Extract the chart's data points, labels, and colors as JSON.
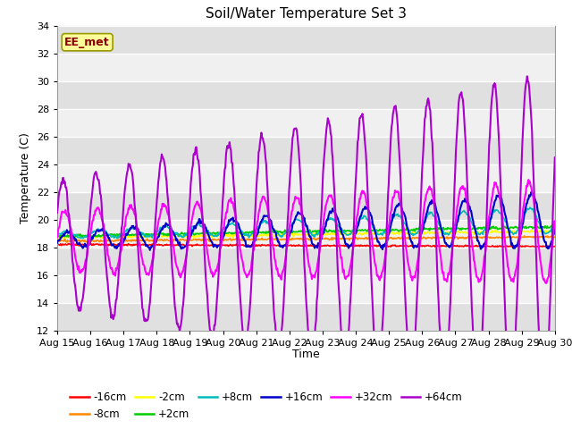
{
  "title": "Soil/Water Temperature Set 3",
  "xlabel": "Time",
  "ylabel": "Temperature (C)",
  "ylim": [
    12,
    34
  ],
  "yticks": [
    12,
    14,
    16,
    18,
    20,
    22,
    24,
    26,
    28,
    30,
    32,
    34
  ],
  "xtick_labels": [
    "Aug 15",
    "Aug 16",
    "Aug 17",
    "Aug 18",
    "Aug 19",
    "Aug 20",
    "Aug 21",
    "Aug 22",
    "Aug 23",
    "Aug 24",
    "Aug 25",
    "Aug 26",
    "Aug 27",
    "Aug 28",
    "Aug 29",
    "Aug 30"
  ],
  "legend_label": "EE_met",
  "series_labels": [
    "-16cm",
    "-8cm",
    "-2cm",
    "+2cm",
    "+8cm",
    "+16cm",
    "+32cm",
    "+64cm"
  ],
  "series_colors": [
    "#ff0000",
    "#ff8800",
    "#ffff00",
    "#00cc00",
    "#00bbbb",
    "#0000cc",
    "#ff00ff",
    "#aa00cc"
  ],
  "fig_color": "#ffffff",
  "plot_bg_light": "#f0f0f0",
  "plot_bg_dark": "#e0e0e0",
  "grid_color": "#ffffff"
}
